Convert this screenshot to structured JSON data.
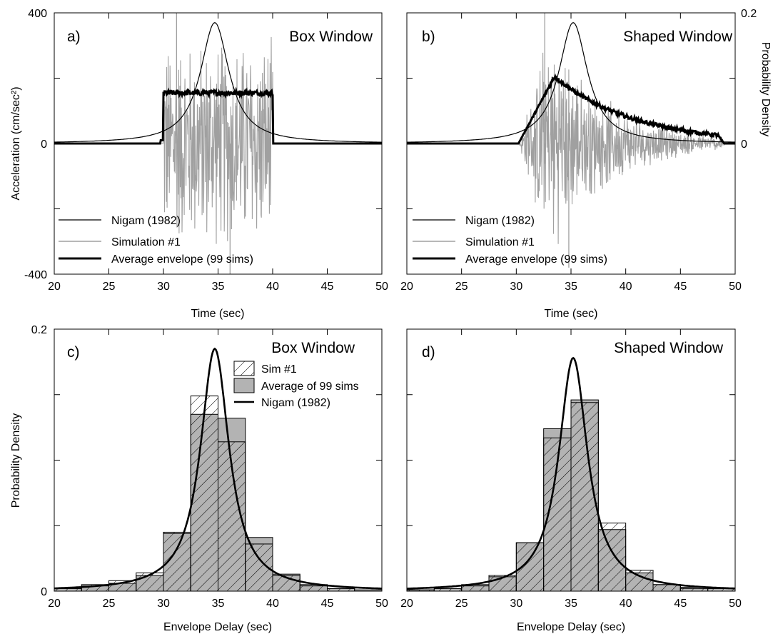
{
  "figure": {
    "left_ylabel": "Acceleration (cm/sec²)",
    "right_ylabel": "Probability Density",
    "bottom_ylabel": "Probability Density",
    "time_xlabel": "Time (sec)",
    "delay_xlabel": "Envelope Delay (sec)"
  },
  "chart_data": [
    {
      "id": "a",
      "panel_label": "a)",
      "title": "Box Window",
      "type": "line",
      "xlabel": "Time (sec)",
      "ylabel": "Acceleration (cm/sec²)",
      "xlim": [
        20,
        50
      ],
      "ylim": [
        -400,
        400
      ],
      "x_ticks": [
        20,
        25,
        30,
        35,
        40,
        45,
        50
      ],
      "y_tick_labels": [
        "400",
        "0",
        "-400"
      ],
      "legend": [
        "Nigam (1982)",
        "Simulation #1",
        "Average envelope (99 sims)"
      ],
      "window": "box",
      "window_start": 30,
      "window_end": 40,
      "average_envelope_level": 155,
      "nigam_peak_time": 34.7,
      "nigam_peak_value": 0.185,
      "simulation_peak": 400,
      "simulation_trough": -400,
      "series": [
        {
          "name": "Nigam (1982)",
          "style": "thin black",
          "axis": "right",
          "units": "probability density"
        },
        {
          "name": "Simulation #1",
          "style": "gray",
          "axis": "left",
          "units": "cm/sec²"
        },
        {
          "name": "Average envelope (99 sims)",
          "style": "thick black",
          "axis": "left",
          "units": "cm/sec²"
        }
      ]
    },
    {
      "id": "b",
      "panel_label": "b)",
      "title": "Shaped Window",
      "type": "line",
      "xlabel": "Time (sec)",
      "ylabel": "Probability Density",
      "xlim": [
        20,
        50
      ],
      "ylim": [
        0,
        0.2
      ],
      "x_ticks": [
        20,
        25,
        30,
        35,
        40,
        45,
        50
      ],
      "y_tick_labels": [
        "0.2",
        "0"
      ],
      "legend": [
        "Nigam (1982)",
        "Simulation #1",
        "Average envelope (99 sims)"
      ],
      "window": "shaped",
      "window_start": 30.2,
      "window_end": 49,
      "average_envelope_peak": 205,
      "average_envelope_peak_time": 33.5,
      "nigam_peak_time": 35.2,
      "nigam_peak_value": 0.185,
      "simulation_peak": 400,
      "simulation_trough": -380,
      "series": [
        {
          "name": "Nigam (1982)",
          "style": "thin black",
          "axis": "right",
          "units": "probability density"
        },
        {
          "name": "Simulation #1",
          "style": "gray",
          "axis": "left",
          "units": "cm/sec²"
        },
        {
          "name": "Average envelope (99 sims)",
          "style": "thick black",
          "axis": "left",
          "units": "cm/sec²"
        }
      ]
    },
    {
      "id": "c",
      "panel_label": "c)",
      "title": "Box Window",
      "type": "bar",
      "xlabel": "Envelope Delay (sec)",
      "ylabel": "Probability Density",
      "xlim": [
        20,
        50
      ],
      "ylim": [
        0,
        0.2
      ],
      "x_ticks": [
        20,
        25,
        30,
        35,
        40,
        45,
        50
      ],
      "y_tick_labels": [
        "0.2",
        "0"
      ],
      "legend": [
        "Sim #1",
        "Average of 99 sims",
        "Nigam (1982)"
      ],
      "bin_centers": [
        21.25,
        23.75,
        26.25,
        28.75,
        31.25,
        33.75,
        36.25,
        38.75,
        41.25,
        43.75,
        46.25,
        48.75
      ],
      "series": [
        {
          "name": "Sim #1",
          "values": [
            0.002,
            0.005,
            0.008,
            0.014,
            0.045,
            0.149,
            0.114,
            0.036,
            0.012,
            0.004,
            0.002,
            0.0
          ]
        },
        {
          "name": "Average of 99 sims",
          "values": [
            0.002,
            0.004,
            0.006,
            0.012,
            0.044,
            0.135,
            0.132,
            0.041,
            0.013,
            0.005,
            0.002,
            0.001
          ]
        }
      ],
      "nigam_peak_time": 34.7,
      "nigam_peak_value": 0.185
    },
    {
      "id": "d",
      "panel_label": "d)",
      "title": "Shaped Window",
      "type": "bar",
      "xlabel": "Envelope Delay (sec)",
      "ylabel": "Probability Density",
      "xlim": [
        20,
        50
      ],
      "ylim": [
        0,
        0.2
      ],
      "x_ticks": [
        20,
        25,
        30,
        35,
        40,
        45,
        50
      ],
      "series": [
        {
          "name": "Sim #1",
          "values": [
            0.001,
            0.002,
            0.004,
            0.012,
            0.037,
            0.117,
            0.144,
            0.052,
            0.016,
            0.005,
            0.002,
            0.002
          ]
        },
        {
          "name": "Average of 99 sims",
          "values": [
            0.001,
            0.002,
            0.005,
            0.011,
            0.037,
            0.124,
            0.146,
            0.047,
            0.014,
            0.005,
            0.003,
            0.002
          ]
        }
      ],
      "nigam_peak_time": 35.2,
      "nigam_peak_value": 0.178
    }
  ]
}
